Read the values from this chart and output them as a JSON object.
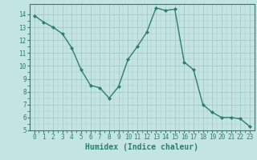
{
  "x": [
    0,
    1,
    2,
    3,
    4,
    5,
    6,
    7,
    8,
    9,
    10,
    11,
    12,
    13,
    14,
    15,
    16,
    17,
    18,
    19,
    20,
    21,
    22,
    23
  ],
  "y": [
    13.9,
    13.4,
    13.0,
    12.5,
    11.4,
    9.7,
    8.5,
    8.3,
    7.5,
    8.4,
    10.5,
    11.5,
    12.6,
    14.5,
    14.3,
    14.4,
    10.3,
    9.7,
    7.0,
    6.4,
    6.0,
    6.0,
    5.9,
    5.3
  ],
  "line_color": "#2e7d6e",
  "marker": "D",
  "marker_size": 2.0,
  "line_width": 1.0,
  "bg_color": "#c2e5e2",
  "grid_color_major": "#aac8c5",
  "xlabel": "Humidex (Indice chaleur)",
  "xlabel_fontsize": 7,
  "xlim": [
    -0.5,
    23.5
  ],
  "ylim": [
    5,
    14.8
  ],
  "yticks": [
    5,
    6,
    7,
    8,
    9,
    10,
    11,
    12,
    13,
    14
  ],
  "xticks": [
    0,
    1,
    2,
    3,
    4,
    5,
    6,
    7,
    8,
    9,
    10,
    11,
    12,
    13,
    14,
    15,
    16,
    17,
    18,
    19,
    20,
    21,
    22,
    23
  ],
  "tick_fontsize": 5.5
}
